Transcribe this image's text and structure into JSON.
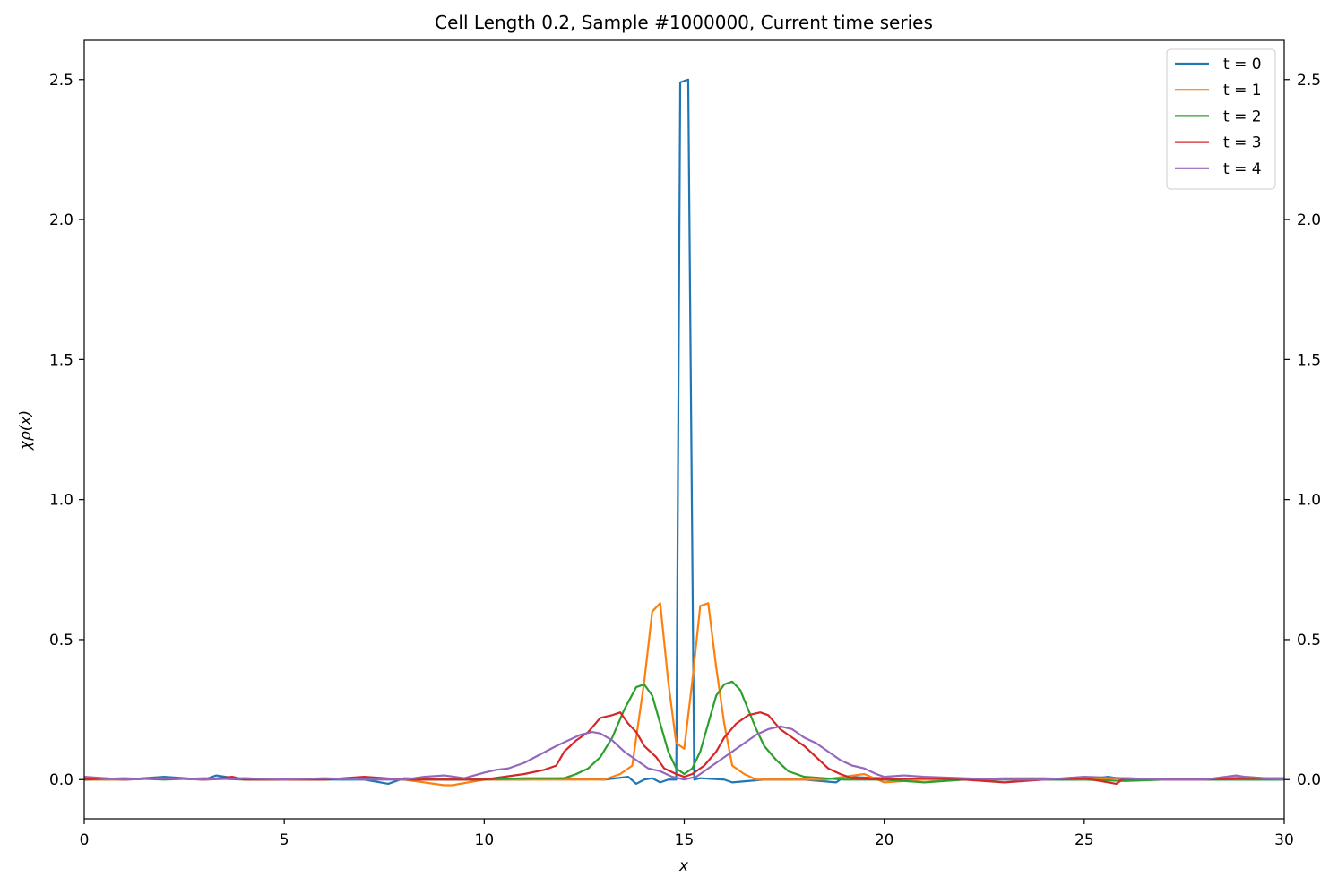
{
  "chart_data": {
    "type": "line",
    "title": "Cell Length 0.2, Sample #1000000, Current time series",
    "xlabel": "x",
    "ylabel": "χρ(x)",
    "xlim": [
      0,
      30
    ],
    "ylim": [
      -0.14,
      2.64
    ],
    "xticks": [
      0,
      5,
      10,
      15,
      20,
      25,
      30
    ],
    "yticks": [
      0.0,
      0.5,
      1.0,
      1.5,
      2.0,
      2.5
    ],
    "xtick_labels": [
      "0",
      "5",
      "10",
      "15",
      "20",
      "25",
      "30"
    ],
    "ytick_labels": [
      "0.0",
      "0.5",
      "1.0",
      "1.5",
      "2.0",
      "2.5"
    ],
    "right_axis_ticks": true,
    "grid": false,
    "legend_position": "top-right",
    "series": [
      {
        "name": "t = 0",
        "color": "#1f77b4",
        "points": [
          [
            0,
            0.0
          ],
          [
            1,
            0.0
          ],
          [
            2,
            0.01
          ],
          [
            3,
            0.0
          ],
          [
            3.3,
            0.015
          ],
          [
            4,
            0.0
          ],
          [
            5,
            0.0
          ],
          [
            6,
            0.0
          ],
          [
            7,
            0.0
          ],
          [
            7.6,
            -0.015
          ],
          [
            8,
            0.005
          ],
          [
            9,
            0.0
          ],
          [
            10,
            0.0
          ],
          [
            11,
            0.0
          ],
          [
            12,
            0.005
          ],
          [
            13,
            0.0
          ],
          [
            13.6,
            0.01
          ],
          [
            13.8,
            -0.015
          ],
          [
            14,
            0.0
          ],
          [
            14.2,
            0.005
          ],
          [
            14.4,
            -0.01
          ],
          [
            14.6,
            0.0
          ],
          [
            14.8,
            0.0
          ],
          [
            14.9,
            2.49
          ],
          [
            15.1,
            2.5
          ],
          [
            15.25,
            0.0
          ],
          [
            15.4,
            0.005
          ],
          [
            16,
            0.0
          ],
          [
            16.2,
            -0.01
          ],
          [
            17,
            0.0
          ],
          [
            18,
            0.0
          ],
          [
            18.8,
            -0.01
          ],
          [
            19,
            0.01
          ],
          [
            20,
            0.005
          ],
          [
            21,
            0.0
          ],
          [
            22,
            0.0
          ],
          [
            23,
            0.0
          ],
          [
            24,
            0.0
          ],
          [
            25,
            0.0
          ],
          [
            25.6,
            0.01
          ],
          [
            26,
            0.0
          ],
          [
            27,
            0.0
          ],
          [
            28,
            0.0
          ],
          [
            29,
            0.0
          ],
          [
            30,
            0.0
          ]
        ]
      },
      {
        "name": "t = 1",
        "color": "#ff7f0e",
        "points": [
          [
            0,
            0.0
          ],
          [
            1,
            0.0
          ],
          [
            2,
            0.005
          ],
          [
            3,
            0.0
          ],
          [
            4,
            0.005
          ],
          [
            5,
            0.0
          ],
          [
            6,
            0.0
          ],
          [
            7,
            0.005
          ],
          [
            8,
            0.0
          ],
          [
            9,
            -0.02
          ],
          [
            9.2,
            -0.02
          ],
          [
            10,
            0.0
          ],
          [
            11,
            0.0
          ],
          [
            12,
            0.0
          ],
          [
            12.5,
            0.0
          ],
          [
            13,
            0.0
          ],
          [
            13.4,
            0.02
          ],
          [
            13.7,
            0.05
          ],
          [
            14.0,
            0.35
          ],
          [
            14.2,
            0.6
          ],
          [
            14.4,
            0.63
          ],
          [
            14.6,
            0.35
          ],
          [
            14.8,
            0.13
          ],
          [
            15.0,
            0.11
          ],
          [
            15.2,
            0.35
          ],
          [
            15.4,
            0.62
          ],
          [
            15.6,
            0.63
          ],
          [
            15.8,
            0.4
          ],
          [
            16.0,
            0.2
          ],
          [
            16.2,
            0.05
          ],
          [
            16.5,
            0.02
          ],
          [
            16.8,
            0.0
          ],
          [
            17.5,
            0.0
          ],
          [
            18.5,
            0.0
          ],
          [
            19.5,
            0.02
          ],
          [
            20,
            -0.01
          ],
          [
            21,
            0.0
          ],
          [
            22,
            0.0
          ],
          [
            23,
            0.005
          ],
          [
            24,
            0.005
          ],
          [
            25,
            0.0
          ],
          [
            26,
            0.005
          ],
          [
            27,
            0.0
          ],
          [
            28,
            0.0
          ],
          [
            29,
            0.01
          ],
          [
            30,
            0.0
          ]
        ]
      },
      {
        "name": "t = 2",
        "color": "#2ca02c",
        "points": [
          [
            0,
            0.0
          ],
          [
            1,
            0.005
          ],
          [
            2,
            0.0
          ],
          [
            3,
            0.005
          ],
          [
            4,
            0.0
          ],
          [
            5,
            0.0
          ],
          [
            6,
            0.0
          ],
          [
            7,
            0.005
          ],
          [
            8,
            0.0
          ],
          [
            9,
            0.0
          ],
          [
            10,
            0.0
          ],
          [
            11,
            0.005
          ],
          [
            12,
            0.005
          ],
          [
            12.3,
            0.02
          ],
          [
            12.6,
            0.04
          ],
          [
            12.9,
            0.08
          ],
          [
            13.2,
            0.15
          ],
          [
            13.5,
            0.25
          ],
          [
            13.8,
            0.33
          ],
          [
            14.0,
            0.34
          ],
          [
            14.2,
            0.3
          ],
          [
            14.4,
            0.2
          ],
          [
            14.6,
            0.1
          ],
          [
            14.8,
            0.04
          ],
          [
            15.0,
            0.02
          ],
          [
            15.2,
            0.04
          ],
          [
            15.4,
            0.1
          ],
          [
            15.6,
            0.2
          ],
          [
            15.8,
            0.3
          ],
          [
            16.0,
            0.34
          ],
          [
            16.2,
            0.35
          ],
          [
            16.4,
            0.32
          ],
          [
            16.6,
            0.25
          ],
          [
            16.8,
            0.18
          ],
          [
            17.0,
            0.12
          ],
          [
            17.3,
            0.07
          ],
          [
            17.6,
            0.03
          ],
          [
            18.0,
            0.01
          ],
          [
            18.5,
            0.005
          ],
          [
            19,
            0.0
          ],
          [
            20,
            0.0
          ],
          [
            21,
            -0.01
          ],
          [
            22,
            0.0
          ],
          [
            23,
            0.0
          ],
          [
            24,
            0.0
          ],
          [
            25,
            0.0
          ],
          [
            26,
            -0.005
          ],
          [
            27,
            0.0
          ],
          [
            28,
            0.0
          ],
          [
            29,
            0.0
          ],
          [
            30,
            0.0
          ]
        ]
      },
      {
        "name": "t = 3",
        "color": "#d62728",
        "points": [
          [
            0,
            0.0
          ],
          [
            0.5,
            0.005
          ],
          [
            1,
            0.0
          ],
          [
            2,
            0.005
          ],
          [
            3,
            0.0
          ],
          [
            3.7,
            0.01
          ],
          [
            4,
            0.0
          ],
          [
            5,
            0.0
          ],
          [
            6,
            0.0
          ],
          [
            7,
            0.01
          ],
          [
            8,
            0.0
          ],
          [
            9,
            0.0
          ],
          [
            10,
            0.0
          ],
          [
            10.5,
            0.01
          ],
          [
            11,
            0.02
          ],
          [
            11.5,
            0.035
          ],
          [
            11.8,
            0.05
          ],
          [
            12,
            0.1
          ],
          [
            12.3,
            0.14
          ],
          [
            12.6,
            0.17
          ],
          [
            12.9,
            0.22
          ],
          [
            13.2,
            0.23
          ],
          [
            13.4,
            0.24
          ],
          [
            13.6,
            0.2
          ],
          [
            13.8,
            0.17
          ],
          [
            14.0,
            0.12
          ],
          [
            14.3,
            0.08
          ],
          [
            14.5,
            0.04
          ],
          [
            14.8,
            0.02
          ],
          [
            15.0,
            0.01
          ],
          [
            15.2,
            0.02
          ],
          [
            15.5,
            0.05
          ],
          [
            15.8,
            0.1
          ],
          [
            16.0,
            0.15
          ],
          [
            16.3,
            0.2
          ],
          [
            16.6,
            0.23
          ],
          [
            16.9,
            0.24
          ],
          [
            17.1,
            0.23
          ],
          [
            17.4,
            0.18
          ],
          [
            17.7,
            0.15
          ],
          [
            18.0,
            0.12
          ],
          [
            18.3,
            0.08
          ],
          [
            18.6,
            0.04
          ],
          [
            18.9,
            0.02
          ],
          [
            19.2,
            0.005
          ],
          [
            20,
            0.0
          ],
          [
            21,
            0.005
          ],
          [
            22,
            0.0
          ],
          [
            23,
            -0.01
          ],
          [
            24,
            0.0
          ],
          [
            25,
            0.005
          ],
          [
            25.8,
            -0.015
          ],
          [
            26,
            0.005
          ],
          [
            27,
            0.0
          ],
          [
            28,
            0.0
          ],
          [
            29,
            0.005
          ],
          [
            30,
            0.005
          ]
        ]
      },
      {
        "name": "t = 4",
        "color": "#9467bd",
        "points": [
          [
            0,
            0.01
          ],
          [
            1,
            0.0
          ],
          [
            2,
            0.005
          ],
          [
            3,
            0.0
          ],
          [
            4,
            0.005
          ],
          [
            5,
            0.0
          ],
          [
            6,
            0.005
          ],
          [
            7,
            0.0
          ],
          [
            8,
            0.0
          ],
          [
            8.5,
            0.01
          ],
          [
            9,
            0.015
          ],
          [
            9.5,
            0.005
          ],
          [
            10,
            0.025
          ],
          [
            10.3,
            0.035
          ],
          [
            10.6,
            0.04
          ],
          [
            11.0,
            0.06
          ],
          [
            11.4,
            0.09
          ],
          [
            11.8,
            0.12
          ],
          [
            12.1,
            0.14
          ],
          [
            12.4,
            0.16
          ],
          [
            12.7,
            0.17
          ],
          [
            12.9,
            0.165
          ],
          [
            13.2,
            0.14
          ],
          [
            13.5,
            0.1
          ],
          [
            13.8,
            0.07
          ],
          [
            14.1,
            0.04
          ],
          [
            14.4,
            0.03
          ],
          [
            14.7,
            0.01
          ],
          [
            15.0,
            0.0
          ],
          [
            15.3,
            0.01
          ],
          [
            15.6,
            0.04
          ],
          [
            15.9,
            0.07
          ],
          [
            16.2,
            0.1
          ],
          [
            16.5,
            0.13
          ],
          [
            16.8,
            0.16
          ],
          [
            17.1,
            0.18
          ],
          [
            17.4,
            0.19
          ],
          [
            17.7,
            0.18
          ],
          [
            18.0,
            0.15
          ],
          [
            18.3,
            0.13
          ],
          [
            18.6,
            0.1
          ],
          [
            18.9,
            0.07
          ],
          [
            19.2,
            0.05
          ],
          [
            19.5,
            0.04
          ],
          [
            19.8,
            0.02
          ],
          [
            20,
            0.01
          ],
          [
            20.5,
            0.015
          ],
          [
            21,
            0.01
          ],
          [
            22,
            0.005
          ],
          [
            23,
            0.0
          ],
          [
            24,
            0.0
          ],
          [
            25,
            0.01
          ],
          [
            26,
            0.005
          ],
          [
            27,
            0.0
          ],
          [
            28,
            0.0
          ],
          [
            28.8,
            0.015
          ],
          [
            29,
            0.01
          ],
          [
            30,
            0.0
          ]
        ]
      }
    ]
  }
}
